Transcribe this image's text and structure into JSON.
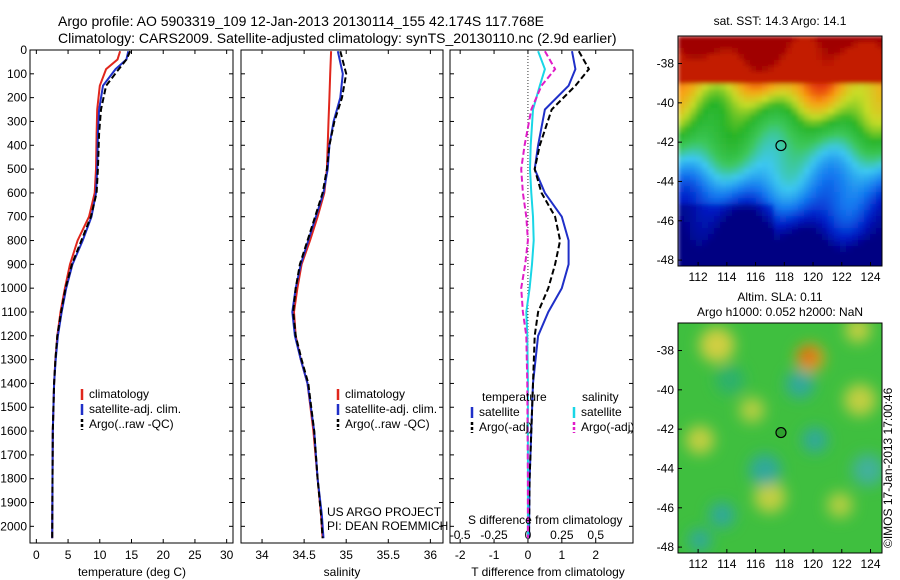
{
  "header": {
    "line1": "Argo profile: AO 5903319_109 12-Jan-2013 20130114_155 42.174S 117.768E",
    "line2": "Climatology: CARS2009. Satellite-adjusted climatology: synTS_20130110.nc (2.9d earlier)"
  },
  "colors": {
    "climatology": "#e0261c",
    "satellite": "#1f2fc8",
    "argo": "#000000",
    "satellite_salinity": "#19d6e6",
    "argo_salinity": "#e01cc8"
  },
  "credits": {
    "project": "US ARGO PROJECT",
    "pi": "PI: DEAN ROEMMICH",
    "side_text": "©IMOS 17-Jan-2013 17:00:46"
  },
  "chart_data": [
    {
      "type": "line",
      "id": "temperature",
      "xlabel": "temperature (deg C)",
      "xlim": [
        -1,
        31
      ],
      "xticks": [
        0,
        5,
        10,
        15,
        20,
        25,
        30
      ],
      "ylim": [
        2070,
        0
      ],
      "yticks": [
        0,
        100,
        200,
        300,
        400,
        500,
        600,
        700,
        800,
        900,
        1000,
        1100,
        1200,
        1300,
        1400,
        1500,
        1600,
        1700,
        1800,
        1900,
        2000
      ],
      "legend": [
        "climatology",
        "satellite-adj. clim.",
        "Argo(..raw -QC)"
      ],
      "series": [
        {
          "name": "climatology",
          "style": "red",
          "x": [
            13.2,
            12.8,
            11,
            10,
            9.6,
            9.5,
            9.4,
            9.2,
            8.3,
            6.5,
            5.3,
            4.5,
            3.8,
            3.3,
            3,
            2.8,
            2.6,
            2.55,
            2.5
          ],
          "y": [
            5,
            40,
            80,
            150,
            250,
            350,
            500,
            600,
            700,
            800,
            900,
            1000,
            1100,
            1200,
            1300,
            1400,
            1600,
            1800,
            2050
          ]
        },
        {
          "name": "satellite-adj. clim.",
          "style": "blue",
          "x": [
            14.5,
            14.2,
            12.5,
            10.5,
            9.9,
            9.7,
            9.6,
            9.4,
            8.7,
            7.3,
            5.7,
            4.7,
            4,
            3.4,
            3.05,
            2.8,
            2.6,
            2.55,
            2.5
          ],
          "y": [
            5,
            40,
            80,
            150,
            250,
            350,
            500,
            600,
            700,
            800,
            900,
            1000,
            1100,
            1200,
            1300,
            1400,
            1600,
            1800,
            2050
          ]
        },
        {
          "name": "Argo(..raw -QC)",
          "style": "black-dash",
          "x": [
            14.8,
            14.2,
            13,
            11,
            10.2,
            9.9,
            9.7,
            9.5,
            8.6,
            7.1,
            5.6,
            4.6,
            3.9,
            3.3,
            3,
            2.8,
            2.6,
            2.55,
            2.5
          ],
          "y": [
            5,
            40,
            80,
            150,
            250,
            350,
            500,
            600,
            700,
            800,
            900,
            1000,
            1100,
            1200,
            1300,
            1400,
            1600,
            1800,
            2050
          ]
        }
      ]
    },
    {
      "type": "line",
      "id": "salinity",
      "xlabel": "salinity",
      "xlim": [
        33.75,
        36.15
      ],
      "xticks": [
        34,
        34.5,
        35,
        35.5,
        36
      ],
      "ylim": [
        2070,
        0
      ],
      "legend": [
        "climatology",
        "satellite-adj. clim.",
        "Argo(..raw -QC)"
      ],
      "series": [
        {
          "name": "climatology",
          "style": "red",
          "x": [
            34.82,
            34.81,
            34.8,
            34.79,
            34.78,
            34.77,
            34.74,
            34.66,
            34.57,
            34.47,
            34.42,
            34.38,
            34.4,
            34.46,
            34.54,
            34.61,
            34.66,
            34.7,
            34.72
          ],
          "y": [
            5,
            100,
            200,
            300,
            400,
            500,
            600,
            700,
            800,
            900,
            1000,
            1100,
            1200,
            1300,
            1400,
            1600,
            1800,
            1950,
            2050
          ]
        },
        {
          "name": "satellite-adj. clim.",
          "style": "blue",
          "x": [
            34.9,
            34.96,
            34.93,
            34.85,
            34.8,
            34.78,
            34.73,
            34.64,
            34.55,
            34.46,
            34.4,
            34.36,
            34.39,
            34.46,
            34.54,
            34.62,
            34.66,
            34.71,
            34.73
          ],
          "y": [
            5,
            100,
            200,
            300,
            400,
            500,
            600,
            700,
            800,
            900,
            1000,
            1100,
            1200,
            1300,
            1400,
            1600,
            1800,
            1950,
            2050
          ]
        },
        {
          "name": "Argo(..raw -QC)",
          "style": "black-dash",
          "x": [
            34.93,
            35.0,
            34.95,
            34.86,
            34.8,
            34.77,
            34.72,
            34.63,
            34.54,
            34.45,
            34.4,
            34.37,
            34.4,
            34.47,
            34.55,
            34.62,
            34.66,
            34.7,
            34.72
          ],
          "y": [
            5,
            100,
            200,
            300,
            400,
            500,
            600,
            700,
            800,
            900,
            1000,
            1100,
            1200,
            1300,
            1400,
            1600,
            1800,
            1950,
            2050
          ]
        }
      ]
    },
    {
      "type": "line",
      "id": "difference",
      "xlabel": "T difference from climatology",
      "xlabel_top": "S difference from climatology",
      "xlim": [
        -2.3,
        3.1
      ],
      "xticks": [
        -2,
        -1,
        0,
        1,
        2
      ],
      "xticks_s": [
        -0.5,
        -0.25,
        0,
        0.25,
        0.5
      ],
      "ylim": [
        2070,
        0
      ],
      "legend_t_title": "temperature",
      "legend_s_title": "salinity",
      "legend_t": [
        "satellite",
        "Argo(-adj)"
      ],
      "legend_s": [
        "satellite",
        "Argo(-adj)"
      ],
      "series": [
        {
          "name": "temperature satellite",
          "style": "blue",
          "x": [
            1.3,
            1.4,
            1.2,
            0.5,
            0.3,
            0.2,
            0.5,
            1,
            1.2,
            1.2,
            1,
            0.6,
            0.3,
            0.15,
            0.1,
            0.05,
            0.03
          ],
          "y": [
            5,
            80,
            150,
            250,
            400,
            500,
            600,
            700,
            800,
            900,
            1000,
            1100,
            1200,
            1400,
            1600,
            1800,
            2050
          ]
        },
        {
          "name": "temperature Argo(-adj)",
          "style": "black-dash",
          "x": [
            1.5,
            1.8,
            1.4,
            0.7,
            0.35,
            0.2,
            0.4,
            0.8,
            0.95,
            0.8,
            0.6,
            0.3,
            0.2,
            0.15,
            0.1,
            0.05,
            0.03
          ],
          "y": [
            5,
            80,
            150,
            250,
            400,
            500,
            600,
            700,
            800,
            900,
            1000,
            1100,
            1200,
            1400,
            1600,
            1800,
            2050
          ]
        },
        {
          "name": "salinity satellite",
          "style": "cyan",
          "x": [
            0.3,
            0.5,
            0.35,
            0.15,
            0.08,
            0.06,
            0.1,
            0.15,
            0.17,
            0.12,
            0.05,
            -0.05,
            -0.02,
            0,
            0,
            0,
            0
          ],
          "y": [
            5,
            80,
            150,
            250,
            400,
            500,
            600,
            700,
            800,
            900,
            1000,
            1100,
            1200,
            1400,
            1600,
            1800,
            2050
          ]
        },
        {
          "name": "salinity Argo(-adj)",
          "style": "magenta-dash",
          "x": [
            0.5,
            0.8,
            0.4,
            0.1,
            -0.1,
            -0.2,
            -0.15,
            -0.05,
            0,
            -0.08,
            -0.2,
            -0.15,
            -0.05,
            -0.02,
            -0.01,
            0,
            0
          ],
          "y": [
            5,
            80,
            150,
            250,
            400,
            500,
            600,
            700,
            800,
            900,
            1000,
            1100,
            1200,
            1400,
            1600,
            1800,
            2050
          ]
        }
      ]
    },
    {
      "type": "heatmap",
      "id": "sst_map",
      "title": "sat. SST: 14.3 Argo: 14.1",
      "xticks": [
        112,
        114,
        116,
        118,
        120,
        122,
        124
      ],
      "yticks": [
        -38,
        -40,
        -42,
        -44,
        -46,
        -48
      ],
      "marker": {
        "lon": 117.768,
        "lat": -42.174
      }
    },
    {
      "type": "heatmap",
      "id": "sla_map",
      "title": "Altim. SLA: 0.11",
      "subtitle": "Argo h1000: 0.052 h2000: NaN",
      "xticks": [
        112,
        114,
        116,
        118,
        120,
        122,
        124
      ],
      "yticks": [
        -38,
        -40,
        -42,
        -44,
        -46,
        -48
      ],
      "marker": {
        "lon": 117.768,
        "lat": -42.174
      }
    }
  ]
}
